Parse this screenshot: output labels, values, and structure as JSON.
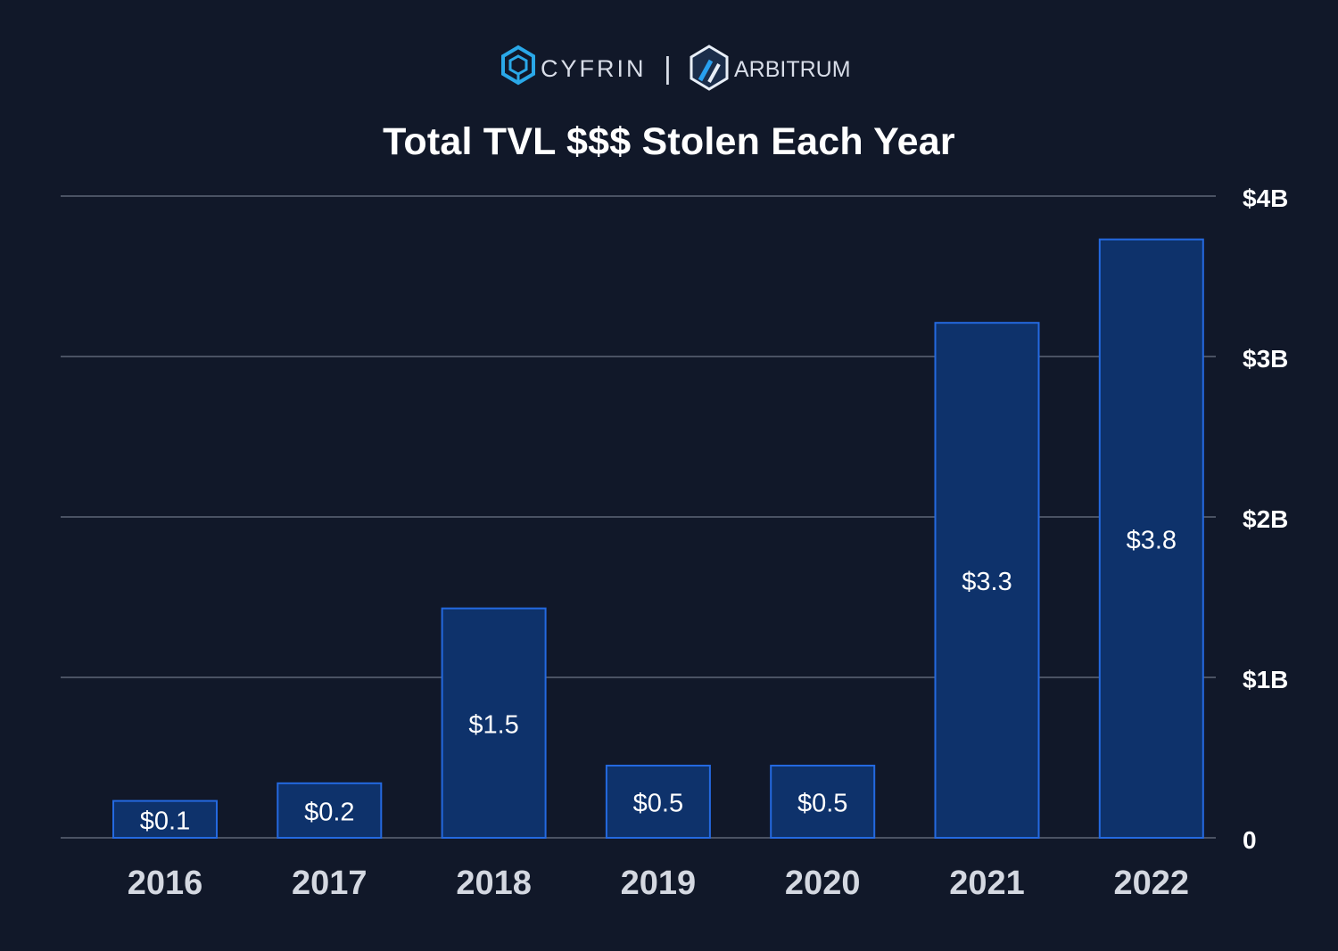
{
  "header": {
    "logos": [
      {
        "name": "CYFRIN",
        "icon": "cyfrin-hexagon-icon"
      },
      {
        "name": "ARBITRUM",
        "icon": "arbitrum-hexagon-icon"
      }
    ],
    "separator": "|"
  },
  "colors": {
    "background": "#111829",
    "bar_fill": "#0e326b",
    "bar_stroke": "#2469e0",
    "grid": "#4a5263",
    "cyfrin_blue": "#2aa8e8",
    "arbitrum_blue": "#28a0f0"
  },
  "chart_data": {
    "type": "bar",
    "title": "Total TVL $$$ Stolen Each Year",
    "xlabel": "",
    "ylabel": "",
    "categories": [
      "2016",
      "2017",
      "2018",
      "2019",
      "2020",
      "2021",
      "2022"
    ],
    "values": [
      0.1,
      0.2,
      1.5,
      0.5,
      0.5,
      3.3,
      3.8
    ],
    "value_labels": [
      "$0.1",
      "$0.2",
      "$1.5",
      "$0.5",
      "$0.5",
      "$3.3",
      "$3.8"
    ],
    "ylim": [
      0,
      4
    ],
    "yticks": [
      0,
      1,
      2,
      3,
      4
    ],
    "ytick_labels": [
      "0",
      "$1B",
      "$2B",
      "$3B",
      "$4B"
    ],
    "grid": true,
    "yaxis_side": "right"
  }
}
